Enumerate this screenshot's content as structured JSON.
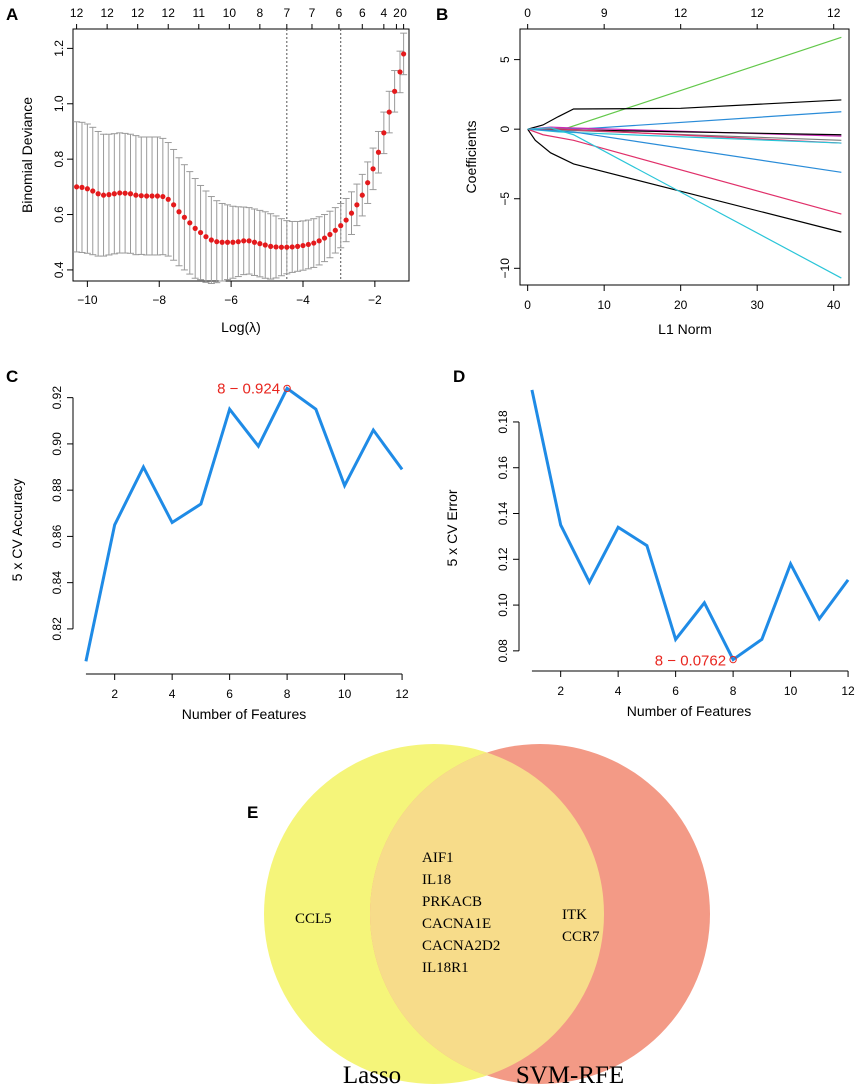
{
  "chart_data": [
    {
      "id": "A",
      "type": "scatter",
      "panel_label": "A",
      "xlabel": "Log(λ)",
      "ylabel": "Binomial Deviance",
      "xlim": [
        -10.4,
        -1.05
      ],
      "ylim": [
        0.36,
        1.27
      ],
      "x_ticks": [
        -10,
        -8,
        -6,
        -4,
        -2
      ],
      "y_ticks": [
        0.4,
        0.6,
        0.8,
        1.0,
        1.2
      ],
      "top_ticks": [
        {
          "x": -10.3,
          "label": "12"
        },
        {
          "x": -9.45,
          "label": "12"
        },
        {
          "x": -8.6,
          "label": "12"
        },
        {
          "x": -7.75,
          "label": "12"
        },
        {
          "x": -6.9,
          "label": "11"
        },
        {
          "x": -6.05,
          "label": "10"
        },
        {
          "x": -5.2,
          "label": "8"
        },
        {
          "x": -4.45,
          "label": "7"
        },
        {
          "x": -3.75,
          "label": "7"
        },
        {
          "x": -3.0,
          "label": "6"
        },
        {
          "x": -2.35,
          "label": "6"
        },
        {
          "x": -1.75,
          "label": "4"
        },
        {
          "x": -1.4,
          "label": "2"
        },
        {
          "x": -1.2,
          "label": "0"
        }
      ],
      "vlines": [
        -4.45,
        -2.95
      ],
      "series": {
        "x": [
          -10.3,
          -10.15,
          -10.0,
          -9.85,
          -9.7,
          -9.55,
          -9.4,
          -9.25,
          -9.1,
          -8.95,
          -8.8,
          -8.65,
          -8.5,
          -8.35,
          -8.2,
          -8.05,
          -7.9,
          -7.75,
          -7.6,
          -7.45,
          -7.3,
          -7.15,
          -7.0,
          -6.85,
          -6.7,
          -6.55,
          -6.4,
          -6.25,
          -6.1,
          -5.95,
          -5.8,
          -5.65,
          -5.5,
          -5.35,
          -5.2,
          -5.05,
          -4.9,
          -4.75,
          -4.6,
          -4.45,
          -4.3,
          -4.15,
          -4.0,
          -3.85,
          -3.7,
          -3.55,
          -3.4,
          -3.25,
          -3.1,
          -2.95,
          -2.8,
          -2.65,
          -2.5,
          -2.35,
          -2.2,
          -2.05,
          -1.9,
          -1.75,
          -1.6,
          -1.45,
          -1.3,
          -1.2
        ],
        "mean": [
          0.7,
          0.698,
          0.693,
          0.685,
          0.675,
          0.67,
          0.672,
          0.675,
          0.678,
          0.677,
          0.675,
          0.67,
          0.668,
          0.667,
          0.667,
          0.667,
          0.665,
          0.655,
          0.635,
          0.61,
          0.59,
          0.57,
          0.55,
          0.535,
          0.52,
          0.508,
          0.502,
          0.5,
          0.5,
          0.5,
          0.502,
          0.505,
          0.505,
          0.5,
          0.495,
          0.49,
          0.485,
          0.483,
          0.482,
          0.482,
          0.483,
          0.485,
          0.488,
          0.492,
          0.497,
          0.505,
          0.515,
          0.528,
          0.543,
          0.56,
          0.58,
          0.605,
          0.635,
          0.67,
          0.715,
          0.765,
          0.825,
          0.895,
          0.97,
          1.045,
          1.115,
          1.18
        ],
        "upper": [
          0.935,
          0.933,
          0.927,
          0.915,
          0.9,
          0.89,
          0.89,
          0.892,
          0.895,
          0.893,
          0.89,
          0.885,
          0.88,
          0.88,
          0.88,
          0.88,
          0.875,
          0.86,
          0.835,
          0.805,
          0.78,
          0.755,
          0.73,
          0.705,
          0.685,
          0.665,
          0.65,
          0.64,
          0.635,
          0.63,
          0.628,
          0.627,
          0.625,
          0.62,
          0.615,
          0.61,
          0.603,
          0.595,
          0.585,
          0.578,
          0.575,
          0.575,
          0.577,
          0.58,
          0.585,
          0.592,
          0.6,
          0.612,
          0.625,
          0.64,
          0.658,
          0.682,
          0.71,
          0.745,
          0.79,
          0.84,
          0.9,
          0.97,
          1.045,
          1.12,
          1.19,
          1.255
        ],
        "lower": [
          0.465,
          0.463,
          0.46,
          0.455,
          0.45,
          0.45,
          0.454,
          0.458,
          0.461,
          0.461,
          0.46,
          0.455,
          0.456,
          0.454,
          0.454,
          0.454,
          0.455,
          0.45,
          0.435,
          0.415,
          0.4,
          0.385,
          0.37,
          0.365,
          0.355,
          0.351,
          0.354,
          0.36,
          0.365,
          0.37,
          0.376,
          0.383,
          0.385,
          0.38,
          0.375,
          0.37,
          0.367,
          0.371,
          0.379,
          0.386,
          0.391,
          0.395,
          0.399,
          0.404,
          0.409,
          0.418,
          0.43,
          0.444,
          0.461,
          0.48,
          0.502,
          0.528,
          0.56,
          0.595,
          0.64,
          0.69,
          0.75,
          0.82,
          0.895,
          0.97,
          1.04,
          1.105
        ]
      }
    },
    {
      "id": "B",
      "type": "line",
      "panel_label": "B",
      "xlabel": "L1 Norm",
      "ylabel": "Coefficients",
      "xlim": [
        -1,
        42
      ],
      "ylim": [
        -11.2,
        7.2
      ],
      "x_ticks": [
        0,
        10,
        20,
        30,
        40
      ],
      "y_ticks": [
        -10,
        -5,
        0,
        5
      ],
      "top_ticks": [
        {
          "x": 0,
          "label": "0"
        },
        {
          "x": 10,
          "label": "9"
        },
        {
          "x": 20,
          "label": "12"
        },
        {
          "x": 30,
          "label": "12"
        },
        {
          "x": 40,
          "label": "12"
        }
      ],
      "series": [
        {
          "color": "#62c84a",
          "x": [
            0,
            1,
            2,
            5,
            41
          ],
          "y": [
            0,
            0,
            0.05,
            0.05,
            6.6
          ]
        },
        {
          "color": "#000000",
          "x": [
            0,
            2,
            4,
            6,
            20,
            41
          ],
          "y": [
            0,
            0.3,
            0.9,
            1.45,
            1.5,
            2.1
          ]
        },
        {
          "color": "#2a8cd8",
          "x": [
            0,
            4,
            8,
            41
          ],
          "y": [
            0,
            0.02,
            0.05,
            1.25
          ]
        },
        {
          "color": "#c92cb8",
          "x": [
            0,
            3,
            5,
            41
          ],
          "y": [
            0,
            0.15,
            0.1,
            -0.5
          ]
        },
        {
          "color": "#000000",
          "x": [
            0,
            6,
            41
          ],
          "y": [
            0,
            -0.05,
            -0.4
          ]
        },
        {
          "color": "#7a7a7a",
          "x": [
            0,
            6,
            41
          ],
          "y": [
            0,
            -0.1,
            -0.8
          ]
        },
        {
          "color": "#e0306a",
          "x": [
            0,
            3,
            41
          ],
          "y": [
            0,
            0.05,
            -1.0
          ]
        },
        {
          "color": "#2ac5d8",
          "x": [
            0,
            4,
            41
          ],
          "y": [
            0,
            -0.2,
            -1.0
          ]
        },
        {
          "color": "#2a8cd8",
          "x": [
            0,
            6,
            41
          ],
          "y": [
            0,
            -0.2,
            -3.1
          ]
        },
        {
          "color": "#e0306a",
          "x": [
            0,
            2,
            6,
            41
          ],
          "y": [
            0,
            -0.4,
            -0.8,
            -6.1
          ]
        },
        {
          "color": "#000000",
          "x": [
            0,
            1,
            3,
            6,
            41
          ],
          "y": [
            0,
            -0.8,
            -1.7,
            -2.5,
            -7.4
          ]
        },
        {
          "color": "#2ac5d8",
          "x": [
            0,
            3,
            6,
            41
          ],
          "y": [
            0,
            0.1,
            -0.4,
            -10.7
          ]
        }
      ]
    },
    {
      "id": "C",
      "type": "line",
      "panel_label": "C",
      "xlabel": "Number of Features",
      "ylabel": "5 x CV Accuracy",
      "xlim": [
        0.55,
        12.45
      ],
      "ylim": [
        0.8005,
        0.9285
      ],
      "x_ticks": [
        2,
        4,
        6,
        8,
        10,
        12
      ],
      "y_ticks": [
        0.82,
        0.84,
        0.86,
        0.88,
        0.9,
        0.92
      ],
      "x": [
        1,
        2,
        3,
        4,
        5,
        6,
        7,
        8,
        9,
        10,
        11,
        12
      ],
      "y": [
        0.806,
        0.865,
        0.89,
        0.866,
        0.874,
        0.915,
        0.899,
        0.924,
        0.915,
        0.882,
        0.906,
        0.889
      ],
      "highlight": {
        "x": 8,
        "y": 0.924,
        "label": "8 − 0.924"
      }
    },
    {
      "id": "D",
      "type": "line",
      "panel_label": "D",
      "xlabel": "Number of Features",
      "ylabel": "5 x CV Error",
      "xlim": [
        0.55,
        12.45
      ],
      "ylim": [
        0.0712,
        0.1992
      ],
      "x_ticks": [
        2,
        4,
        6,
        8,
        10,
        12
      ],
      "y_ticks": [
        0.08,
        0.1,
        0.12,
        0.14,
        0.16,
        0.18
      ],
      "x": [
        1,
        2,
        3,
        4,
        5,
        6,
        7,
        8,
        9,
        10,
        11,
        12
      ],
      "y": [
        0.194,
        0.135,
        0.11,
        0.134,
        0.126,
        0.085,
        0.101,
        0.0762,
        0.085,
        0.118,
        0.094,
        0.111
      ],
      "highlight": {
        "x": 8,
        "y": 0.0762,
        "label": "8 − 0.0762"
      }
    }
  ],
  "venn": {
    "panel_label": "E",
    "left_set": "Lasso",
    "right_set": "SVM-RFE",
    "left_only": [
      "CCL5"
    ],
    "shared": [
      "AIF1",
      "IL18",
      "PRKACB",
      "CACNA1E",
      "CACNA2D2",
      "IL18R1"
    ],
    "right_only": [
      "ITK",
      "CCR7"
    ],
    "left_color": "#f5f57a",
    "right_color": "#f39a86",
    "overlap_color": "#f7dc8a"
  },
  "colors": {
    "deviance_point": "#e41a1c",
    "errorbar": "#9a9a9a",
    "cv_line": "#1f8be6",
    "annotation": "#e8261f"
  }
}
